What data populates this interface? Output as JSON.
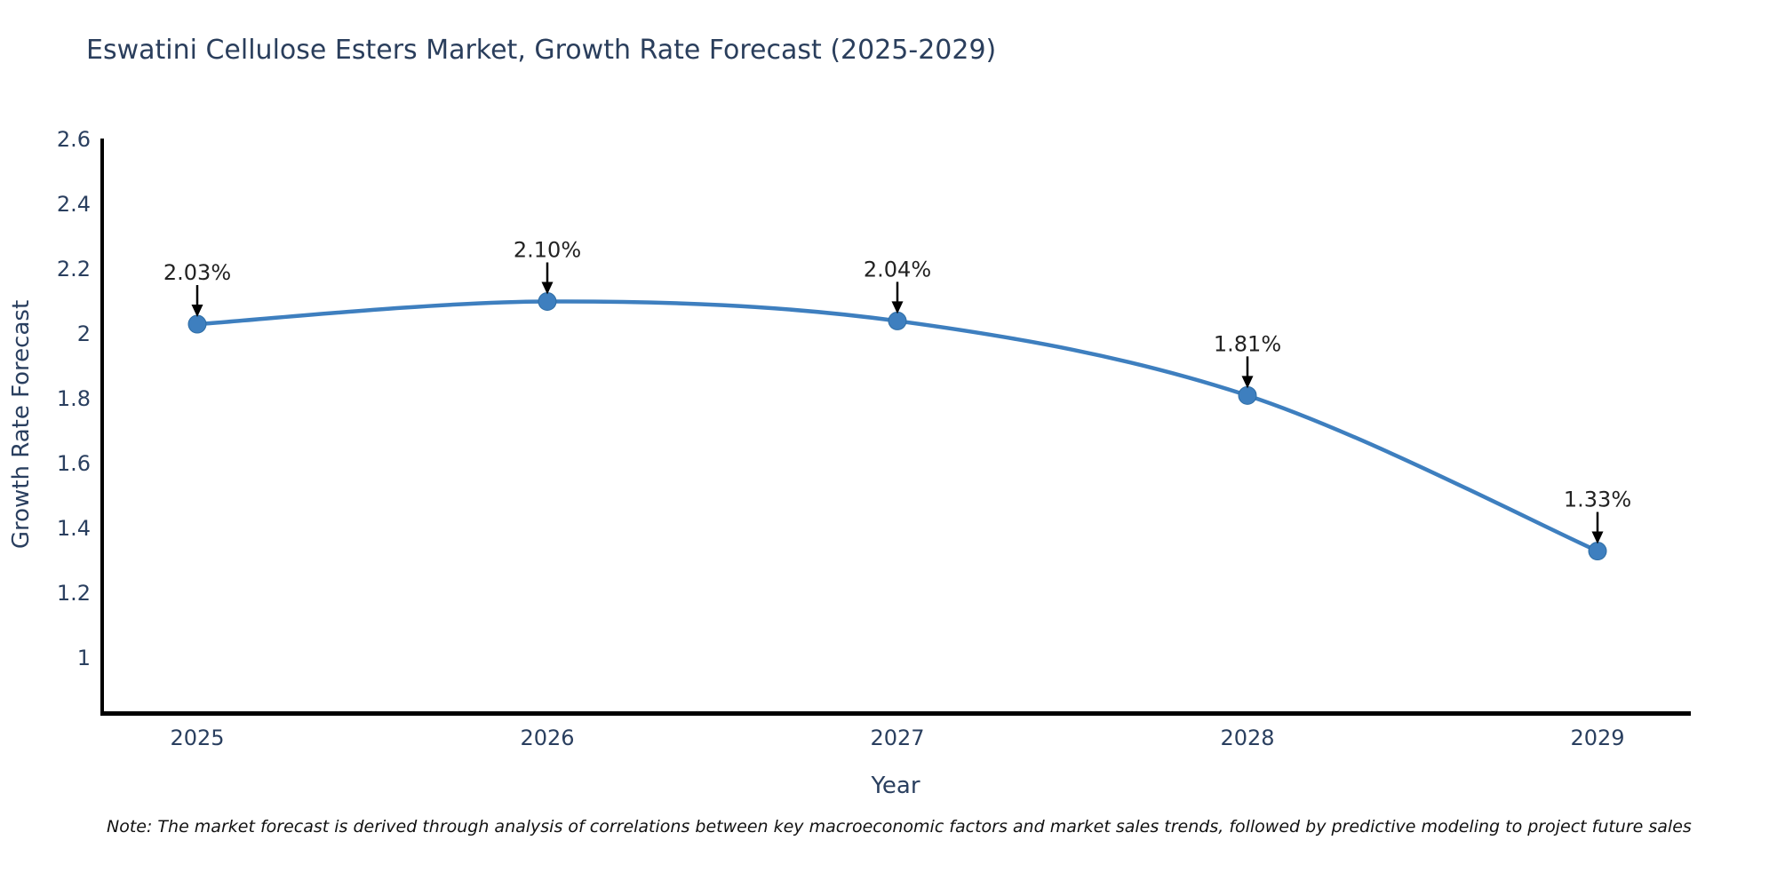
{
  "title": "Eswatini Cellulose Esters Market, Growth Rate Forecast (2025-2029)",
  "note": "Note: The market forecast is derived through analysis of correlations between key macroeconomic factors and market sales trends, followed by predictive modeling to project future sales",
  "chart_data": {
    "type": "line",
    "title": "Eswatini Cellulose Esters Market, Growth Rate Forecast (2025-2029)",
    "xlabel": "Year",
    "ylabel": "Growth Rate Forecast",
    "x": [
      2025,
      2026,
      2027,
      2028,
      2029
    ],
    "xtick_labels": [
      "2025",
      "2026",
      "2027",
      "2028",
      "2029"
    ],
    "values": [
      2.03,
      2.1,
      2.04,
      1.81,
      1.33
    ],
    "point_labels": [
      "2.03%",
      "2.10%",
      "2.04%",
      "1.81%",
      "1.33%"
    ],
    "ytick_labels": [
      "1",
      "1.2",
      "1.4",
      "1.6",
      "1.8",
      "2",
      "2.2",
      "2.4",
      "2.6"
    ],
    "yticks": [
      1,
      1.2,
      1.4,
      1.6,
      1.8,
      2,
      2.2,
      2.4,
      2.6
    ],
    "ylim": [
      0.8,
      2.6
    ],
    "xlim": [
      2024.73,
      2029.27
    ],
    "grid": false,
    "legend": false,
    "line_shape": "spline",
    "annotation_style": "value label with down arrow to each point"
  },
  "colors": {
    "background": "#ffffff",
    "line": "#3e7fbf",
    "marker": "#3e7fbf",
    "marker_edge": "#2e6da4",
    "axis_line": "#000000",
    "tick_text": "#2a3f5f",
    "axis_title_text": "#2a3f5f",
    "chart_title_text": "#2a3e5c",
    "annotation_text": "#222222",
    "arrow": "#000000",
    "note_text": "#111111"
  }
}
